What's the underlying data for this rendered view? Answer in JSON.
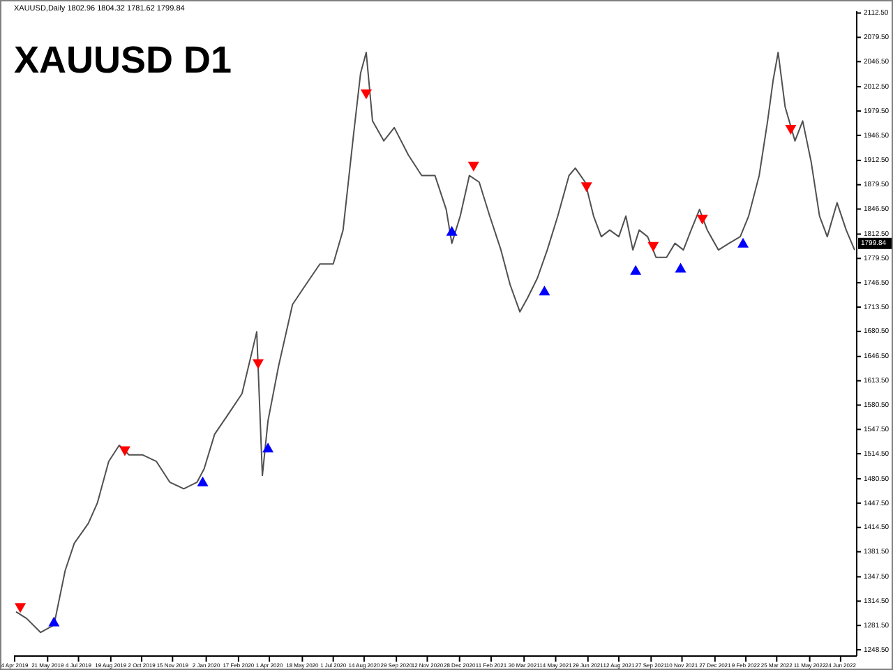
{
  "chart_data": {
    "type": "line",
    "title": "XAUUSD D1",
    "annotations": [
      "XAUUSD,Daily 1802.96 1804.32 1781.62 1799.84",
      {
        "text": "1799.84",
        "y": 1799.84
      }
    ],
    "xlim": [
      "2019-04-03",
      "2022-07-17"
    ],
    "xticks": [
      {
        "value": "2019-04-04",
        "label": "4 Apr 2019"
      },
      {
        "value": "2019-05-21",
        "label": "21 May 2019"
      },
      {
        "value": "2019-07-04",
        "label": "4 Jul 2019"
      },
      {
        "value": "2019-08-19",
        "label": "19 Aug 2019"
      },
      {
        "value": "2019-10-02",
        "label": "2 Oct 2019"
      },
      {
        "value": "2019-11-15",
        "label": "15 Nov 2019"
      },
      {
        "value": "2020-01-02",
        "label": "2 Jan 2020"
      },
      {
        "value": "2020-02-17",
        "label": "17 Feb 2020"
      },
      {
        "value": "2020-04-01",
        "label": "1 Apr 2020"
      },
      {
        "value": "2020-05-18",
        "label": "18 May 2020"
      },
      {
        "value": "2020-07-01",
        "label": "1 Jul 2020"
      },
      {
        "value": "2020-08-14",
        "label": "14 Aug 2020"
      },
      {
        "value": "2020-09-29",
        "label": "29 Sep 2020"
      },
      {
        "value": "2020-11-12",
        "label": "12 Nov 2020"
      },
      {
        "value": "2020-12-28",
        "label": "28 Dec 2020"
      },
      {
        "value": "2021-02-11",
        "label": "11 Feb 2021"
      },
      {
        "value": "2021-03-30",
        "label": "30 Mar 2021"
      },
      {
        "value": "2021-05-14",
        "label": "14 May 2021"
      },
      {
        "value": "2021-06-29",
        "label": "29 Jun 2021"
      },
      {
        "value": "2021-08-12",
        "label": "12 Aug 2021"
      },
      {
        "value": "2021-09-27",
        "label": "27 Sep 2021"
      },
      {
        "value": "2021-11-10",
        "label": "10 Nov 2021"
      },
      {
        "value": "2021-12-27",
        "label": "27 Dec 2021"
      },
      {
        "value": "2022-02-09",
        "label": "9 Feb 2022"
      },
      {
        "value": "2022-03-25",
        "label": "25 Mar 2022"
      },
      {
        "value": "2022-05-11",
        "label": "11 May 2022"
      },
      {
        "value": "2022-06-24",
        "label": "24 Jun 2022"
      }
    ],
    "ylim": [
      1240,
      2115
    ],
    "yticks": [
      {
        "value": 1248.5,
        "label": "1248.50"
      },
      {
        "value": 1281.5,
        "label": "1281.50"
      },
      {
        "value": 1314.5,
        "label": "1314.50"
      },
      {
        "value": 1347.5,
        "label": "1347.50"
      },
      {
        "value": 1381.5,
        "label": "1381.50"
      },
      {
        "value": 1414.5,
        "label": "1414.50"
      },
      {
        "value": 1447.5,
        "label": "1447.50"
      },
      {
        "value": 1480.5,
        "label": "1480.50"
      },
      {
        "value": 1514.5,
        "label": "1514.50"
      },
      {
        "value": 1547.5,
        "label": "1547.50"
      },
      {
        "value": 1580.5,
        "label": "1580.50"
      },
      {
        "value": 1613.5,
        "label": "1613.50"
      },
      {
        "value": 1646.5,
        "label": "1646.50"
      },
      {
        "value": 1680.5,
        "label": "1680.50"
      },
      {
        "value": 1713.5,
        "label": "1713.50"
      },
      {
        "value": 1746.5,
        "label": "1746.50"
      },
      {
        "value": 1779.5,
        "label": "1779.50"
      },
      {
        "value": 1812.5,
        "label": "1812.50"
      },
      {
        "value": 1846.5,
        "label": "1846.50"
      },
      {
        "value": 1879.5,
        "label": "1879.50"
      },
      {
        "value": 1912.5,
        "label": "1912.50"
      },
      {
        "value": 1946.5,
        "label": "1946.50"
      },
      {
        "value": 1979.5,
        "label": "1979.50"
      },
      {
        "value": 2012.5,
        "label": "2012.50"
      },
      {
        "value": 2046.5,
        "label": "2046.50"
      },
      {
        "value": 2079.5,
        "label": "2079.50"
      },
      {
        "value": 2112.5,
        "label": "2112.50"
      }
    ],
    "grid": false,
    "series": [
      {
        "color": "#505050",
        "x": [
          "2019-04-06",
          "2019-04-21",
          "2019-05-11",
          "2019-05-30",
          "2019-06-15",
          "2019-06-28",
          "2019-07-18",
          "2019-07-31",
          "2019-08-16",
          "2019-08-31",
          "2019-09-14",
          "2019-10-03",
          "2019-10-23",
          "2019-11-11",
          "2019-12-01",
          "2019-12-20",
          "2019-12-30",
          "2020-01-14",
          "2020-02-03",
          "2020-02-22",
          "2020-03-07",
          "2020-03-14",
          "2020-03-22",
          "2020-03-30",
          "2020-04-14",
          "2020-05-04",
          "2020-05-23",
          "2020-06-12",
          "2020-07-01",
          "2020-07-15",
          "2020-07-30",
          "2020-08-09",
          "2020-08-17",
          "2020-08-26",
          "2020-09-11",
          "2020-09-26",
          "2020-10-16",
          "2020-11-04",
          "2020-11-23",
          "2020-12-09",
          "2020-12-17",
          "2020-12-29",
          "2021-01-11",
          "2021-01-25",
          "2021-02-09",
          "2021-02-25",
          "2021-03-10",
          "2021-03-24",
          "2021-04-04",
          "2021-04-18",
          "2021-05-02",
          "2021-05-17",
          "2021-06-02",
          "2021-06-11",
          "2021-06-25",
          "2021-07-07",
          "2021-07-18",
          "2021-07-30",
          "2021-08-12",
          "2021-08-22",
          "2021-09-01",
          "2021-09-10",
          "2021-09-22",
          "2021-10-04",
          "2021-10-19",
          "2021-10-31",
          "2021-11-12",
          "2021-11-23",
          "2021-12-05",
          "2021-12-16",
          "2022-01-01",
          "2022-01-16",
          "2022-02-01",
          "2022-02-13",
          "2022-02-28",
          "2022-03-12",
          "2022-03-20",
          "2022-03-27",
          "2022-04-06",
          "2022-04-20",
          "2022-05-01",
          "2022-05-13",
          "2022-05-25",
          "2022-06-05",
          "2022-06-19",
          "2022-07-02",
          "2022-07-14"
        ],
        "values": [
          1300,
          1291,
          1272,
          1282,
          1356,
          1393,
          1420,
          1448,
          1504,
          1526,
          1513,
          1513,
          1504,
          1476,
          1467,
          1476,
          1494,
          1541,
          1569,
          1596,
          1652,
          1680,
          1485,
          1559,
          1633,
          1717,
          1744,
          1772,
          1772,
          1818,
          1948,
          2031,
          2059,
          1966,
          1939,
          1957,
          1920,
          1892,
          1892,
          1846,
          1800,
          1837,
          1892,
          1883,
          1837,
          1791,
          1744,
          1707,
          1726,
          1753,
          1791,
          1837,
          1892,
          1902,
          1883,
          1837,
          1809,
          1818,
          1809,
          1837,
          1791,
          1818,
          1809,
          1781,
          1781,
          1800,
          1791,
          1818,
          1846,
          1818,
          1791,
          1800,
          1809,
          1837,
          1892,
          1966,
          2022,
          2059,
          1985,
          1939,
          1966,
          1911,
          1837,
          1809,
          1855,
          1818,
          1791
        ]
      },
      {
        "type": "scatter",
        "color": "#ff0000",
        "marker": "triangle",
        "x": [
          "2019-04-12",
          "2019-09-08",
          "2020-03-16",
          "2020-08-17",
          "2021-01-17",
          "2021-06-27",
          "2021-09-30",
          "2021-12-09",
          "2022-04-14"
        ],
        "values": [
          1306,
          1519,
          1637,
          2003,
          1905,
          1877,
          1796,
          1833,
          1955
        ]
      },
      {
        "type": "scatter",
        "color": "#0000ff",
        "marker": "triangle",
        "x": [
          "2019-05-30",
          "2019-12-28",
          "2020-03-30",
          "2020-12-17",
          "2021-04-28",
          "2021-09-05",
          "2021-11-08",
          "2022-02-05"
        ],
        "values": [
          1286,
          1476,
          1522,
          1816,
          1735,
          1763,
          1766,
          1800
        ]
      }
    ]
  }
}
